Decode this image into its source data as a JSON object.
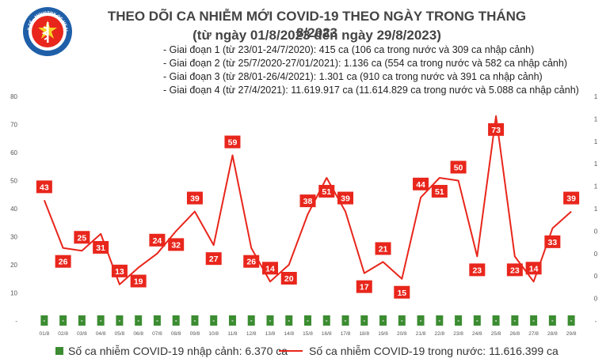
{
  "header": {
    "logo_text": "BỘ Y TẾ · MINISTRY OF HEALTH",
    "title": "THEO DÕI CA NHIỄM MỚI COVID-19 THEO NGÀY TRONG THÁNG 8/2023",
    "subtitle": "(từ ngày 01/8/2023 đến ngày 29/8/2023)"
  },
  "stages": [
    "Giai đoạn 1 (từ 23/01-24/7/2020): 415 ca (106 ca trong nước và 309 ca nhập cảnh)",
    "Giai đoạn 2 (từ 25/7/2020-27/01/2021): 1.136 ca (554 ca trong nước và 582 ca nhập cảnh)",
    "Giai đoạn 3 (từ 28/01-26/4/2021): 1.301 ca (910 ca trong nước và 391 ca nhập cảnh)",
    "Giai đoạn 4 (từ 27/4/2021): 11.619.917 ca (11.614.829 ca trong nước và 5.088 ca nhập cảnh)"
  ],
  "chart_data": {
    "type": "bar+line",
    "categories": [
      "01/8",
      "02/8",
      "03/8",
      "04/8",
      "05/8",
      "06/8",
      "07/8",
      "08/8",
      "09/8",
      "10/8",
      "11/8",
      "12/8",
      "13/8",
      "14/8",
      "15/8",
      "16/8",
      "17/8",
      "18/8",
      "19/8",
      "20/8",
      "21/8",
      "22/8",
      "23/8",
      "24/8",
      "25/8",
      "26/8",
      "27/8",
      "28/8",
      "29/8"
    ],
    "series": [
      {
        "name": "Số ca nhiễm COVID-19 nhập cảnh",
        "type": "bar",
        "axis": "right",
        "color": "#3c8c32",
        "values": [
          0,
          0,
          0,
          0,
          0,
          0,
          0,
          0,
          0,
          0,
          0,
          0,
          0,
          0,
          0,
          0,
          0,
          0,
          0,
          0,
          0,
          0,
          0,
          0,
          0,
          0,
          0,
          0,
          0
        ],
        "labels": [
          "-",
          "-",
          "-",
          "-",
          "-",
          "-",
          "-",
          "-",
          "-",
          "-",
          "-",
          "-",
          "-",
          "-",
          "-",
          "-",
          "-",
          "-",
          "-",
          "-",
          "-",
          "-",
          "-",
          "-",
          "-",
          "-",
          "-",
          "-",
          "-"
        ]
      },
      {
        "name": "Số ca nhiễm COVID-19 trong nước",
        "type": "line",
        "axis": "left",
        "color": "#e8261c",
        "values": [
          43,
          26,
          25,
          31,
          13,
          19,
          24,
          32,
          39,
          27,
          59,
          26,
          14,
          20,
          38,
          51,
          39,
          17,
          21,
          15,
          44,
          51,
          50,
          23,
          73,
          23,
          14,
          33,
          39
        ]
      }
    ],
    "ylim": [
      0,
      80
    ],
    "yticks": [
      0,
      10,
      20,
      30,
      40,
      50,
      60,
      70,
      80
    ],
    "yticklabels": [
      "-",
      "10",
      "20",
      "30",
      "40",
      "50",
      "60",
      "70",
      "80"
    ],
    "y2ticklabels": [
      "-",
      "0",
      "0",
      "0",
      "0",
      "1",
      "1",
      "1",
      "1",
      "1",
      "1"
    ]
  },
  "legend": {
    "import_label": "Số ca nhiễm COVID-19 nhập cảnh: 6.370 ca",
    "domestic_label": "Số ca nhiễm COVID-19 trong nước: 11.616.399 ca"
  }
}
